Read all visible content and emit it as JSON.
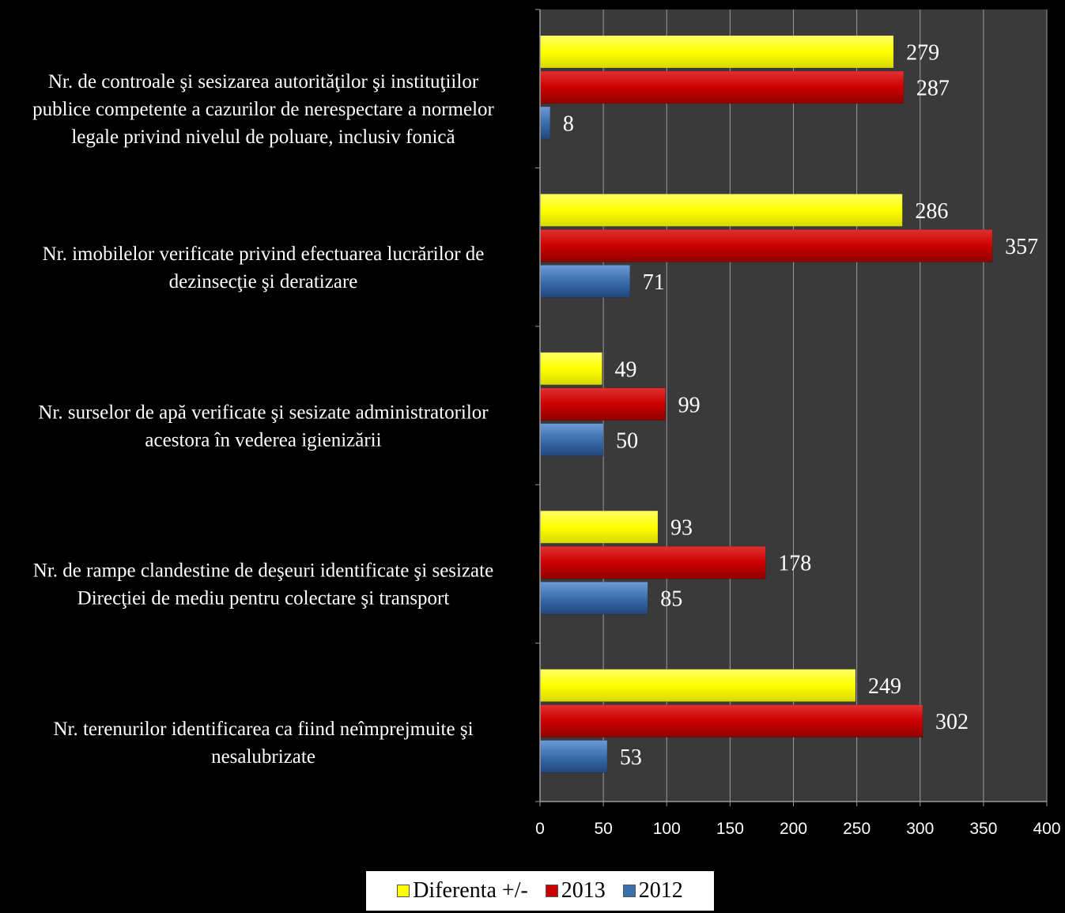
{
  "chart_data": {
    "type": "bar",
    "orientation": "horizontal",
    "categories": [
      "Nr. de controale şi sesizarea autorităţilor şi instituţiilor publice competente a cazurilor de nerespectare a normelor legale privind nivelul de poluare, inclusiv fonică",
      "Nr. imobilelor verificate privind efectuarea lucrărilor de dezinsecţie şi deratizare",
      "Nr. surselor de apă verificate şi sesizate administratorilor acestora în vederea igienizării",
      "Nr. de rampe clandestine de deşeuri identificate şi sesizate Direcţiei de mediu pentru colectare şi transport",
      "Nr. terenurilor identificarea ca fiind neîmprejmuite şi nesalubrizate"
    ],
    "category_lines": [
      [
        "Nr. de controale şi sesizarea autorităţilor şi instituţiilor",
        "publice competente a cazurilor de nerespectare a normelor",
        "legale privind nivelul de poluare, inclusiv fonică"
      ],
      [
        "Nr. imobilelor verificate privind efectuarea lucrărilor de",
        "dezinsecţie şi deratizare"
      ],
      [
        "Nr. surselor de apă verificate şi sesizate administratorilor",
        "acestora în vederea igienizării"
      ],
      [
        "Nr. de rampe clandestine de deşeuri identificate şi sesizate",
        "Direcţiei de mediu pentru colectare şi transport"
      ],
      [
        "Nr. terenurilor identificarea ca fiind neîmprejmuite şi",
        "nesalubrizate"
      ]
    ],
    "series": [
      {
        "name": "Diferenta +/-",
        "color": "#ffff00",
        "values": [
          279,
          286,
          49,
          93,
          249
        ]
      },
      {
        "name": "2013",
        "color": "#cc0000",
        "values": [
          287,
          357,
          99,
          178,
          302
        ]
      },
      {
        "name": "2012",
        "color": "#3a6ead",
        "values": [
          8,
          71,
          50,
          85,
          53
        ]
      }
    ],
    "xlim": [
      0,
      400
    ],
    "xticks": [
      "0",
      "50",
      "100",
      "150",
      "200",
      "250",
      "300",
      "350",
      "400"
    ],
    "grid": true,
    "legend_position": "bottom"
  }
}
